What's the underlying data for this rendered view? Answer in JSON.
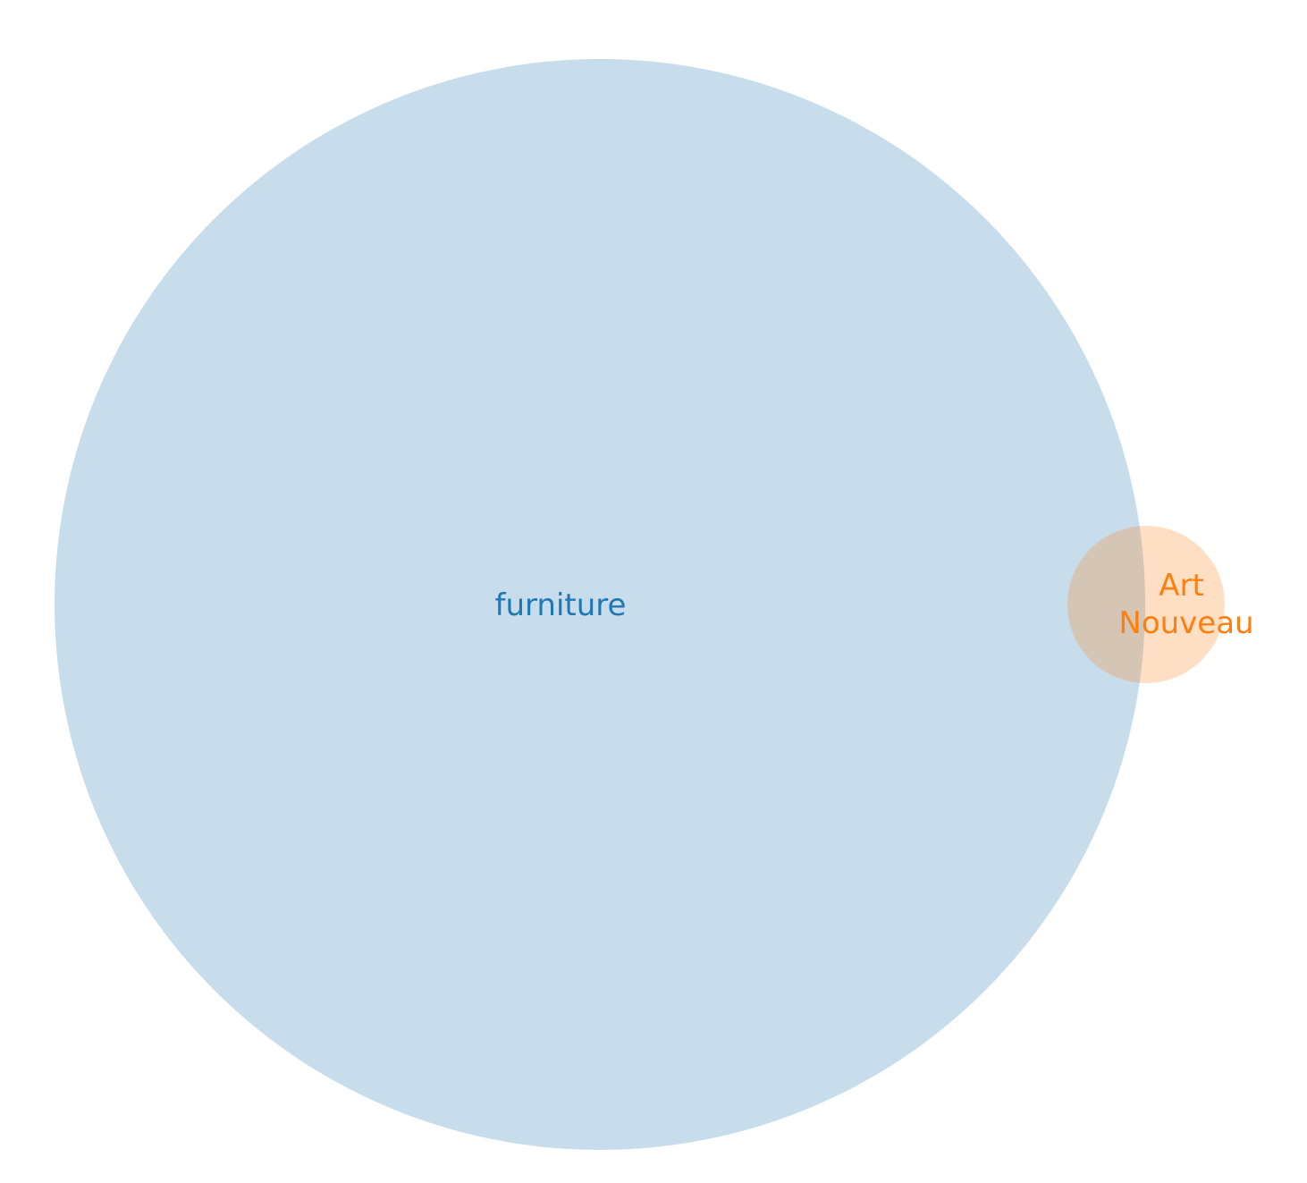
{
  "diagram": {
    "type": "venn",
    "sets": [
      {
        "id": "furniture",
        "label_lines": [
          "furniture"
        ],
        "fill_color": "#1f77b4",
        "label_color": "#1f77b4",
        "relative_size": "large"
      },
      {
        "id": "art-nouveau",
        "label_lines": [
          "Art",
          "Nouveau"
        ],
        "fill_color": "#ff7f0e",
        "label_color": "#ff7f0e",
        "relative_size": "small"
      }
    ],
    "overlap": {
      "sets": [
        "furniture",
        "art-nouveau"
      ],
      "label": ""
    }
  }
}
